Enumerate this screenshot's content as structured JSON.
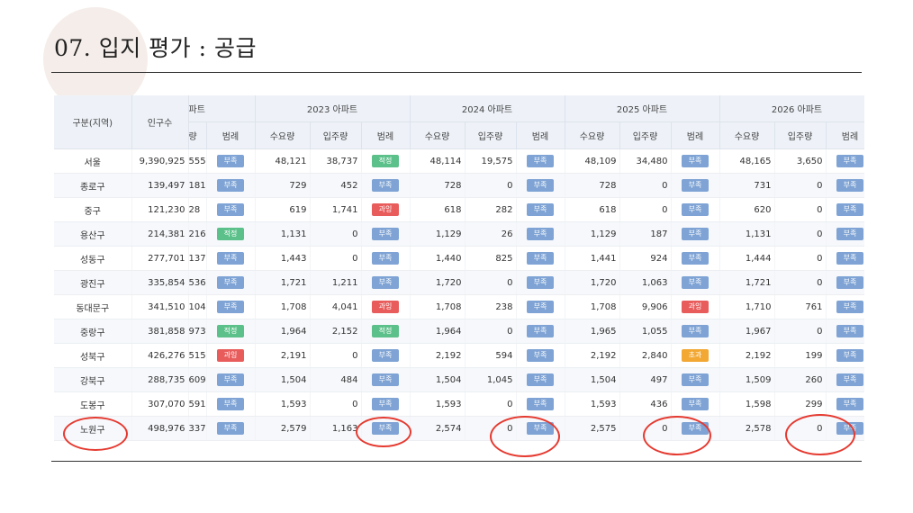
{
  "title": "07. 입지 평가 : 공급",
  "table": {
    "area_header": "구분(지역)",
    "pop_header": "인구수",
    "cut_group_header": "파트",
    "cut_sub": "량",
    "cut_legend": "범례",
    "year_groups": [
      "2023 아파트",
      "2024 아파트",
      "2025 아파트",
      "2026 아파트"
    ],
    "sub_headers": [
      "수요량",
      "입주량",
      "범례"
    ],
    "rows": [
      {
        "area": "서울",
        "pop": "9,390,925",
        "p": "555",
        "pb": "부족",
        "pbc": "b",
        "y": [
          [
            "48,121",
            "38,737",
            "적정",
            "g"
          ],
          [
            "48,114",
            "19,575",
            "부족",
            "b"
          ],
          [
            "48,109",
            "34,480",
            "부족",
            "b"
          ],
          [
            "48,165",
            "3,650",
            "부족",
            "b"
          ]
        ]
      },
      {
        "area": "종로구",
        "pop": "139,497",
        "p": "181",
        "pb": "부족",
        "pbc": "b",
        "y": [
          [
            "729",
            "452",
            "부족",
            "b"
          ],
          [
            "728",
            "0",
            "부족",
            "b"
          ],
          [
            "728",
            "0",
            "부족",
            "b"
          ],
          [
            "731",
            "0",
            "부족",
            "b"
          ]
        ]
      },
      {
        "area": "중구",
        "pop": "121,230",
        "p": "28",
        "pb": "부족",
        "pbc": "b",
        "y": [
          [
            "619",
            "1,741",
            "과잉",
            "r"
          ],
          [
            "618",
            "282",
            "부족",
            "b"
          ],
          [
            "618",
            "0",
            "부족",
            "b"
          ],
          [
            "620",
            "0",
            "부족",
            "b"
          ]
        ]
      },
      {
        "area": "용산구",
        "pop": "214,381",
        "p": "216",
        "pb": "적정",
        "pbc": "g",
        "y": [
          [
            "1,131",
            "0",
            "부족",
            "b"
          ],
          [
            "1,129",
            "26",
            "부족",
            "b"
          ],
          [
            "1,129",
            "187",
            "부족",
            "b"
          ],
          [
            "1,131",
            "0",
            "부족",
            "b"
          ]
        ]
      },
      {
        "area": "성동구",
        "pop": "277,701",
        "p": "137",
        "pb": "부족",
        "pbc": "b",
        "y": [
          [
            "1,443",
            "0",
            "부족",
            "b"
          ],
          [
            "1,440",
            "825",
            "부족",
            "b"
          ],
          [
            "1,441",
            "924",
            "부족",
            "b"
          ],
          [
            "1,444",
            "0",
            "부족",
            "b"
          ]
        ]
      },
      {
        "area": "광진구",
        "pop": "335,854",
        "p": "536",
        "pb": "부족",
        "pbc": "b",
        "y": [
          [
            "1,721",
            "1,211",
            "부족",
            "b"
          ],
          [
            "1,720",
            "0",
            "부족",
            "b"
          ],
          [
            "1,720",
            "1,063",
            "부족",
            "b"
          ],
          [
            "1,721",
            "0",
            "부족",
            "b"
          ]
        ]
      },
      {
        "area": "동대문구",
        "pop": "341,510",
        "p": "104",
        "pb": "부족",
        "pbc": "b",
        "y": [
          [
            "1,708",
            "4,041",
            "과잉",
            "r"
          ],
          [
            "1,708",
            "238",
            "부족",
            "b"
          ],
          [
            "1,708",
            "9,906",
            "과잉",
            "r"
          ],
          [
            "1,710",
            "761",
            "부족",
            "b"
          ]
        ]
      },
      {
        "area": "중랑구",
        "pop": "381,858",
        "p": "973",
        "pb": "적정",
        "pbc": "g",
        "y": [
          [
            "1,964",
            "2,152",
            "적정",
            "g"
          ],
          [
            "1,964",
            "0",
            "부족",
            "b"
          ],
          [
            "1,965",
            "1,055",
            "부족",
            "b"
          ],
          [
            "1,967",
            "0",
            "부족",
            "b"
          ]
        ]
      },
      {
        "area": "성북구",
        "pop": "426,276",
        "p": "515",
        "pb": "과잉",
        "pbc": "r",
        "y": [
          [
            "2,191",
            "0",
            "부족",
            "b"
          ],
          [
            "2,192",
            "594",
            "부족",
            "b"
          ],
          [
            "2,192",
            "2,840",
            "초과",
            "o"
          ],
          [
            "2,192",
            "199",
            "부족",
            "b"
          ]
        ]
      },
      {
        "area": "강북구",
        "pop": "288,735",
        "p": "609",
        "pb": "부족",
        "pbc": "b",
        "y": [
          [
            "1,504",
            "484",
            "부족",
            "b"
          ],
          [
            "1,504",
            "1,045",
            "부족",
            "b"
          ],
          [
            "1,504",
            "497",
            "부족",
            "b"
          ],
          [
            "1,509",
            "260",
            "부족",
            "b"
          ]
        ]
      },
      {
        "area": "도봉구",
        "pop": "307,070",
        "p": "591",
        "pb": "부족",
        "pbc": "b",
        "y": [
          [
            "1,593",
            "0",
            "부족",
            "b"
          ],
          [
            "1,593",
            "0",
            "부족",
            "b"
          ],
          [
            "1,593",
            "436",
            "부족",
            "b"
          ],
          [
            "1,598",
            "299",
            "부족",
            "b"
          ]
        ]
      },
      {
        "area": "노원구",
        "pop": "498,976",
        "p": "337",
        "pb": "부족",
        "pbc": "b",
        "y": [
          [
            "2,579",
            "1,163",
            "부족",
            "b"
          ],
          [
            "2,574",
            "0",
            "부족",
            "b"
          ],
          [
            "2,575",
            "0",
            "부족",
            "b"
          ],
          [
            "2,578",
            "0",
            "부족",
            "b"
          ]
        ]
      }
    ]
  },
  "colors": {
    "accent_circle": "#e53a30",
    "badge_shortage": "#7ea3d4",
    "badge_adequate": "#5cc08a",
    "badge_excess": "#e85c5c",
    "badge_over": "#f2a833"
  }
}
